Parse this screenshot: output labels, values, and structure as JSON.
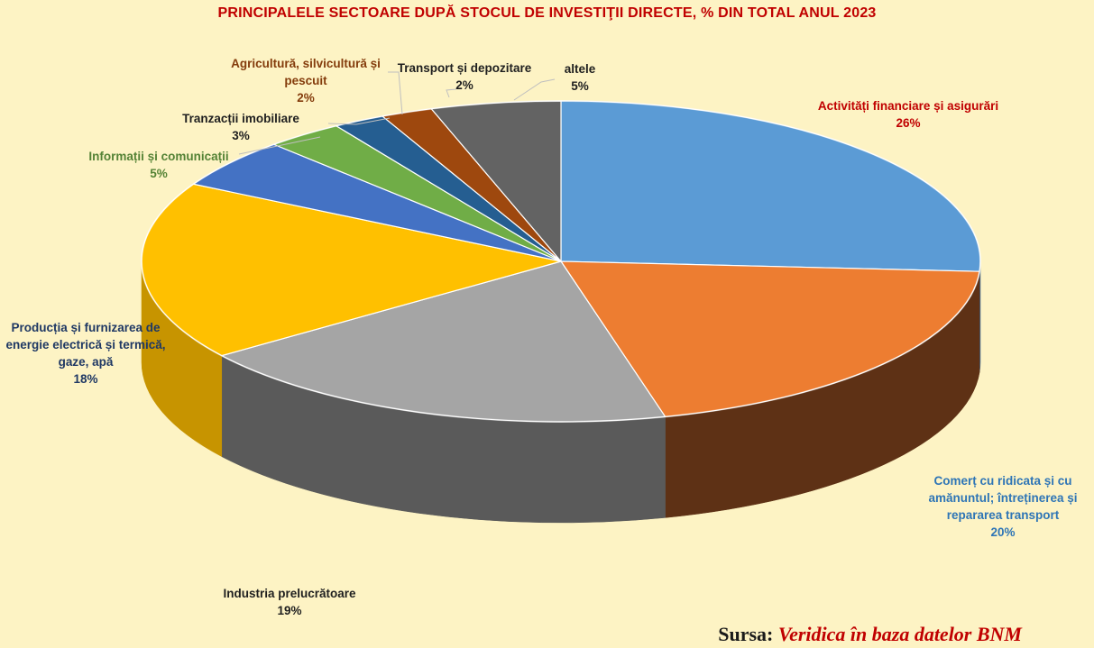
{
  "chart_data": {
    "type": "pie",
    "title": "PRINCIPALELE SECTOARE DUPĂ STOCUL DE INVESTIŢII DIRECTE, % DIN TOTAL ANUL 2023",
    "slices": [
      {
        "label": "Activități financiare și asigurări",
        "value": 26,
        "pct": "26%",
        "color": "#5b9bd5",
        "side": "#3f6f9b",
        "label_color": "#c00000"
      },
      {
        "label": "Comerț cu ridicata și cu amănuntul; întreținerea și repararea transport",
        "value": 20,
        "pct": "20%",
        "color": "#ed7d31",
        "side": "#5e3115",
        "label_color": "#2e75b6"
      },
      {
        "label": "Industria prelucrătoare",
        "value": 19,
        "pct": "19%",
        "color": "#a5a5a5",
        "side": "#5a5a5a",
        "label_color": "#1f1f1f"
      },
      {
        "label": "Producția și furnizarea de energie electrică și termică, gaze, apă",
        "value": 18,
        "pct": "18%",
        "color": "#ffc000",
        "side": "#c79400",
        "label_color": "#1f3864"
      },
      {
        "label": "Informații și comunicații",
        "value": 5,
        "pct": "5%",
        "color": "#4472c4",
        "side": "#2c4d86",
        "label_color": "#548235"
      },
      {
        "label": "Tranzacții imobiliare",
        "value": 3,
        "pct": "3%",
        "color": "#70ad47",
        "side": "#4a7530",
        "label_color": "#1f1f1f"
      },
      {
        "label": "Agricultură, silvicultură și pescuit",
        "value": 2,
        "pct": "2%",
        "color": "#255e91",
        "side": "#173c5c",
        "label_color": "#843c0c"
      },
      {
        "label": "Transport și depozitare",
        "value": 2,
        "pct": "2%",
        "color": "#9e480e",
        "side": "#652e09",
        "label_color": "#1f1f1f"
      },
      {
        "label": "altele",
        "value": 5,
        "pct": "5%",
        "color": "#636363",
        "side": "#3c3c3c",
        "label_color": "#1f1f1f"
      }
    ]
  },
  "source": {
    "prefix": "Sursa:",
    "value": "Veridica în baza datelor BNM"
  }
}
